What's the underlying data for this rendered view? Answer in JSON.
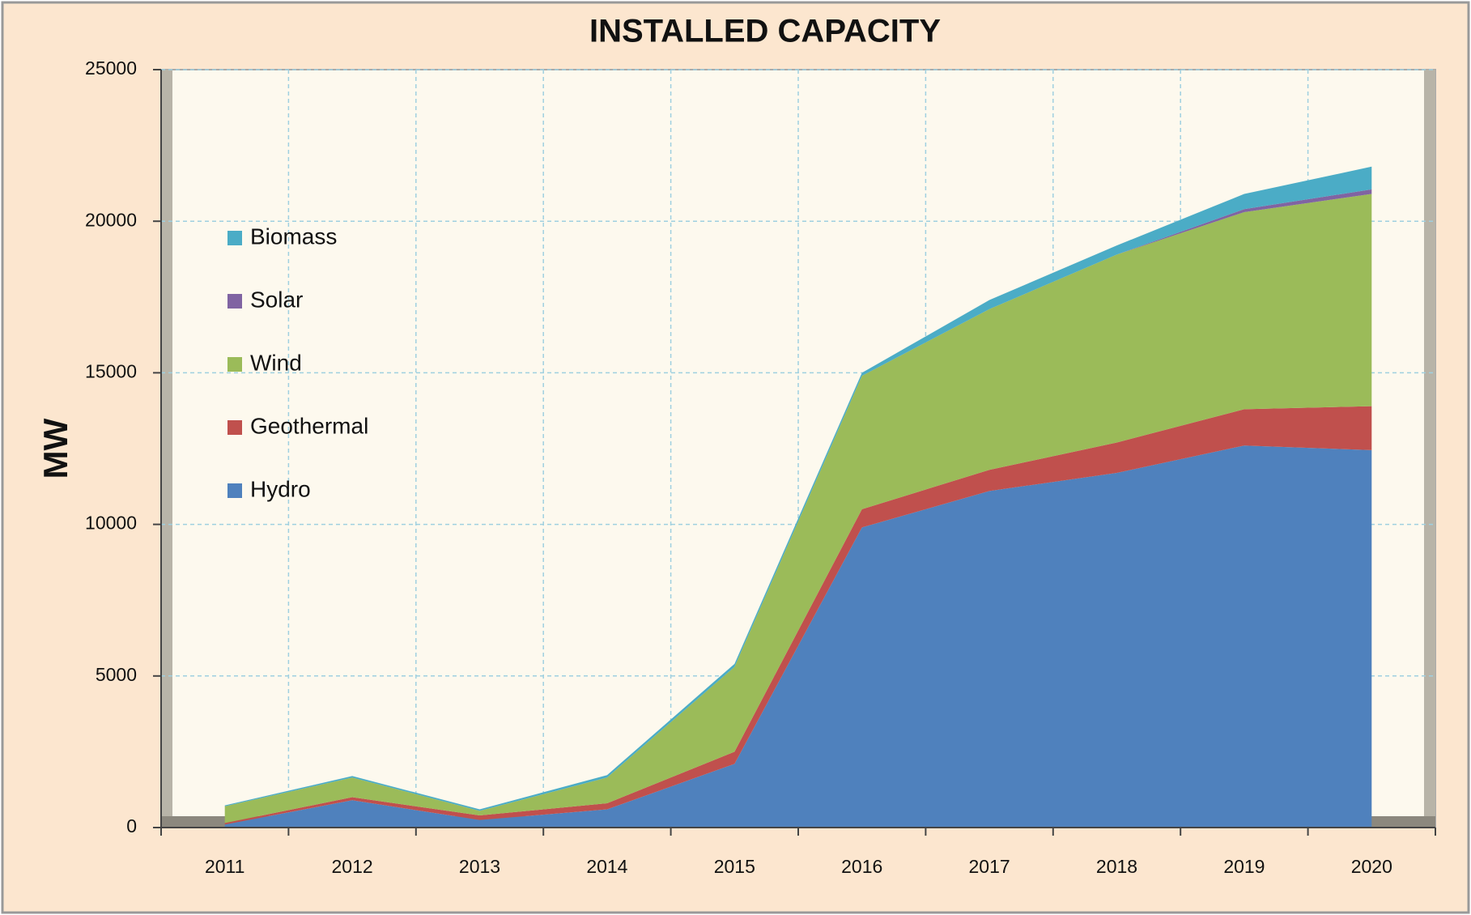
{
  "chart_data": {
    "type": "stacked_area",
    "title": "INSTALLED CAPACITY",
    "y_label": "MW",
    "categories": [
      "2011",
      "2012",
      "2013",
      "2014",
      "2015",
      "2016",
      "2017",
      "2018",
      "2019",
      "2020"
    ],
    "series": [
      {
        "name": "Hydro",
        "color": "#4f81bd",
        "values": [
          100,
          900,
          250,
          600,
          2100,
          9900,
          11100,
          11700,
          12600,
          12450
        ]
      },
      {
        "name": "Geothermal",
        "color": "#c0504d",
        "values": [
          50,
          100,
          150,
          200,
          400,
          600,
          700,
          1000,
          1200,
          1450
        ]
      },
      {
        "name": "Wind",
        "color": "#9bbb59",
        "values": [
          550,
          650,
          150,
          850,
          2800,
          4400,
          5300,
          6200,
          6500,
          7000
        ]
      },
      {
        "name": "Solar",
        "color": "#8064a2",
        "values": [
          0,
          0,
          0,
          0,
          0,
          0,
          0,
          0,
          100,
          150
        ]
      },
      {
        "name": "Biomass",
        "color": "#4bacc6",
        "values": [
          30,
          50,
          50,
          80,
          100,
          100,
          300,
          300,
          500,
          750
        ]
      }
    ],
    "ylim": [
      0,
      25000
    ],
    "yticks": [
      0,
      5000,
      10000,
      15000,
      20000,
      25000
    ],
    "grid": true
  }
}
